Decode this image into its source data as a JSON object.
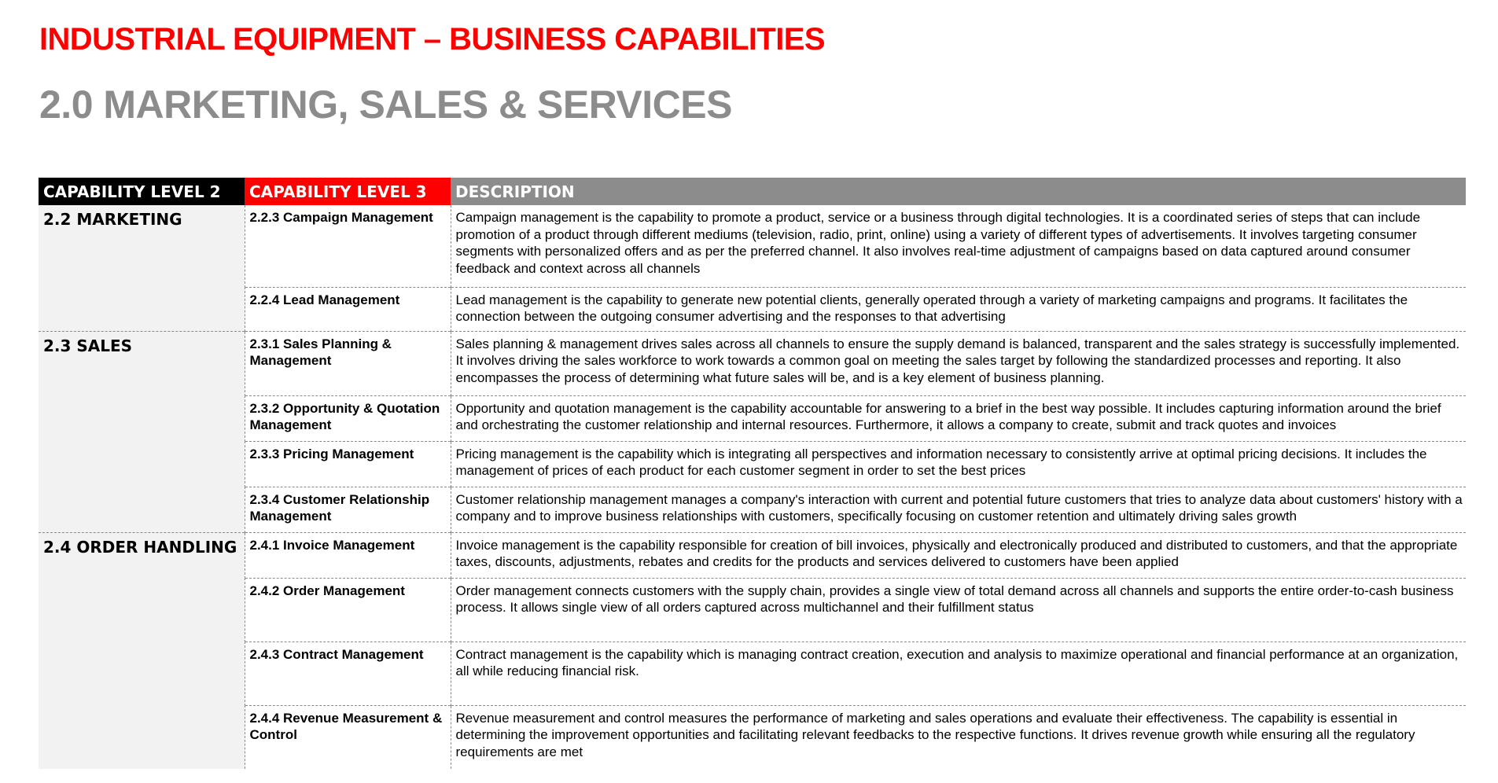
{
  "header": {
    "title": "INDUSTRIAL EQUIPMENT – BUSINESS CAPABILITIES",
    "subtitle": "2.0 MARKETING, SALES & SERVICES"
  },
  "colors": {
    "title_red": "#ff0000",
    "subtitle_gray": "#8c8c8c",
    "header_level2_bg": "#000000",
    "header_level3_bg": "#ff0000",
    "header_description_bg": "#8c8c8c",
    "level2_cell_bg": "#f2f2f2"
  },
  "table": {
    "columns": [
      "CAPABILITY LEVEL 2",
      "CAPABILITY LEVEL 3",
      "DESCRIPTION"
    ],
    "groups": [
      {
        "level2": "2.2 MARKETING",
        "items": [
          {
            "level3": "2.2.3 Campaign Management",
            "description": "Campaign management is the capability to promote a product, service or a business through digital technologies. It is a coordinated series of steps that can include promotion of a product through different mediums (television, radio, print, online) using a variety of different types of advertisements. It involves targeting consumer segments with personalized offers and as per the preferred channel. It also involves real-time adjustment of campaigns based on data captured around consumer feedback and context across all channels"
          },
          {
            "level3": "2.2.4 Lead Management",
            "description": "Lead management is the capability to generate new potential clients, generally operated through a variety of marketing campaigns and programs. It facilitates the connection between the outgoing consumer advertising and the responses to that advertising"
          }
        ]
      },
      {
        "level2": "2.3 SALES",
        "items": [
          {
            "level3": "2.3.1 Sales Planning & Management",
            "description": "Sales planning & management drives sales across all channels to ensure the supply demand is balanced, transparent and the sales strategy is successfully implemented. It involves driving the sales workforce to work towards a common goal on meeting the sales target by following the standardized processes and reporting. It also encompasses the process of determining what future sales will be, and is a key element of business planning."
          },
          {
            "level3": "2.3.2 Opportunity & Quotation Management",
            "description": "Opportunity and quotation management is the capability accountable for answering to a brief in the best way possible. It includes capturing information around the brief and orchestrating the customer relationship and internal resources. Furthermore, it allows a company to create, submit and track quotes and invoices"
          },
          {
            "level3": "2.3.3 Pricing Management",
            "description": "Pricing management is the capability which is integrating all perspectives and information necessary to consistently arrive at optimal pricing decisions. It includes the management of prices of each product for each customer segment in order to set the best prices"
          },
          {
            "level3": "2.3.4 Customer Relationship Management",
            "description": "Customer relationship management manages a company's interaction with current and potential future customers that tries to analyze data about customers' history with a company and to improve business relationships with customers, specifically focusing on customer retention and ultimately driving sales growth"
          }
        ]
      },
      {
        "level2": "2.4 ORDER HANDLING",
        "items": [
          {
            "level3": "2.4.1 Invoice Management",
            "description": "Invoice management is the capability responsible for creation of bill invoices, physically and electronically produced and distributed to customers, and that the appropriate taxes, discounts, adjustments, rebates and credits for the products and services delivered to customers have been applied"
          },
          {
            "level3": "2.4.2 Order Management",
            "description": "Order management connects customers with the supply chain, provides a single view of total demand across all channels and supports the entire order-to-cash business process. It allows single view of all orders captured across multichannel and their fulfillment status"
          },
          {
            "level3": "2.4.3 Contract Management",
            "description": "Contract management is the capability which is managing contract creation, execution and analysis to maximize operational and financial performance at an organization, all while reducing financial risk."
          },
          {
            "level3": "2.4.4 Revenue Measurement & Control",
            "description": "Revenue measurement and control measures the performance of marketing and sales operations and evaluate their effectiveness. The capability is essential in determining the improvement opportunities and facilitating relevant feedbacks to the respective functions. It drives revenue growth while ensuring all the regulatory requirements are met"
          }
        ]
      }
    ]
  }
}
